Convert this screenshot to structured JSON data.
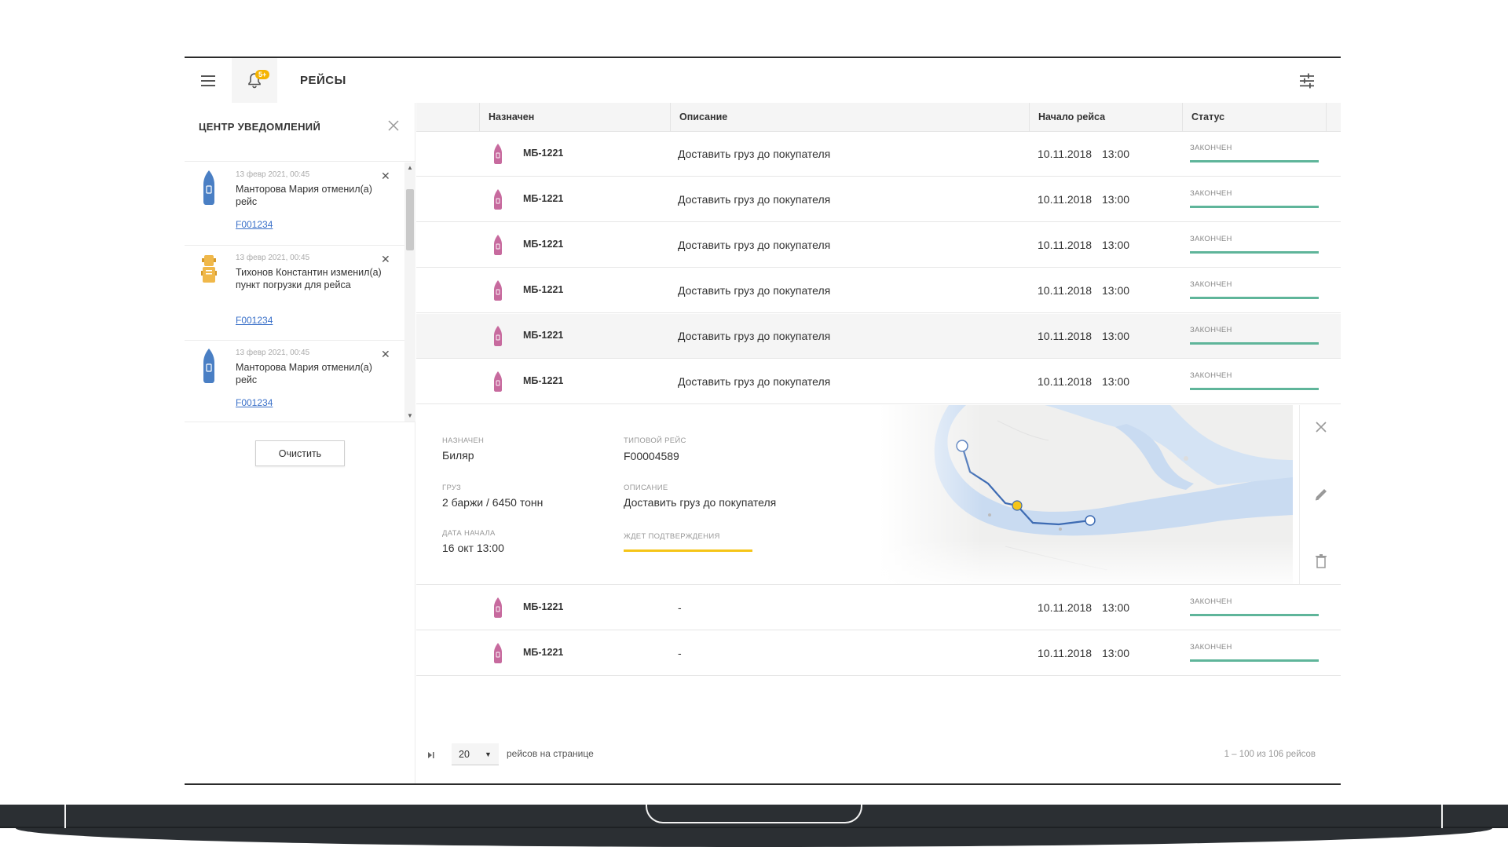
{
  "header": {
    "title": "РЕЙСЫ",
    "notification_badge": "5+"
  },
  "notifications": {
    "title": "ЦЕНТР УВЕДОМЛЕНИЙ",
    "clear_label": "Очистить",
    "items": [
      {
        "icon": "boat-blue-icon",
        "date": "13 февр 2021, 00:45",
        "text": "Манторова Мария отменил(а) рейс",
        "link": "F001234"
      },
      {
        "icon": "truck-yellow-icon",
        "date": "13 февр 2021, 00:45",
        "text": "Тихонов Константин изменил(а) пункт погрузки для рейса",
        "link": "F001234"
      },
      {
        "icon": "boat-blue-icon",
        "date": "13 февр 2021, 00:45",
        "text": "Манторова Мария отменил(а) рейс",
        "link": "F001234"
      }
    ]
  },
  "table": {
    "columns": [
      "Назначен",
      "Описание",
      "Начало рейса",
      "Статус"
    ],
    "rows": [
      {
        "name": "МБ-1221",
        "desc": "Доставить груз до покупателя",
        "date": "10.11.2018",
        "time": "13:00",
        "status": "ЗАКОНЧЕН"
      },
      {
        "name": "МБ-1221",
        "desc": "Доставить груз до покупателя",
        "date": "10.11.2018",
        "time": "13:00",
        "status": "ЗАКОНЧЕН"
      },
      {
        "name": "МБ-1221",
        "desc": "Доставить груз до покупателя",
        "date": "10.11.2018",
        "time": "13:00",
        "status": "ЗАКОНЧЕН"
      },
      {
        "name": "МБ-1221",
        "desc": "Доставить груз до покупателя",
        "date": "10.11.2018",
        "time": "13:00",
        "status": "ЗАКОНЧЕН"
      },
      {
        "name": "МБ-1221",
        "desc": "Доставить груз до покупателя",
        "date": "10.11.2018",
        "time": "13:00",
        "status": "ЗАКОНЧЕН"
      },
      {
        "name": "МБ-1221",
        "desc": "Доставить груз до покупателя",
        "date": "10.11.2018",
        "time": "13:00",
        "status": "ЗАКОНЧЕН"
      }
    ],
    "rows_after": [
      {
        "name": "МБ-1221",
        "desc": "-",
        "date": "10.11.2018",
        "time": "13:00",
        "status": "ЗАКОНЧЕН"
      },
      {
        "name": "МБ-1221",
        "desc": "-",
        "date": "10.11.2018",
        "time": "13:00",
        "status": "ЗАКОНЧЕН"
      }
    ],
    "status_color": "#5fb59a"
  },
  "detail": {
    "assigned_label": "НАЗНАЧЕН",
    "assigned_value": "Биляр",
    "cargo_label": "ГРУЗ",
    "cargo_value": "2 баржи / 6450 тонн",
    "start_label": "ДАТА НАЧАЛА",
    "start_value": "16 окт  13:00",
    "template_label": "ТИПОВОЙ РЕЙС",
    "template_value": "F00004589",
    "desc_label": "ОПИСАНИЕ",
    "desc_value": "Доставить груз до покупателя",
    "status": "ЖДЕТ ПОДТВЕРЖДЕНИЯ",
    "status_color": "#f5c518"
  },
  "footer": {
    "per_page": "20",
    "per_page_label": "рейсов на странице",
    "range": "1 – 100 из 106 рейсов"
  }
}
